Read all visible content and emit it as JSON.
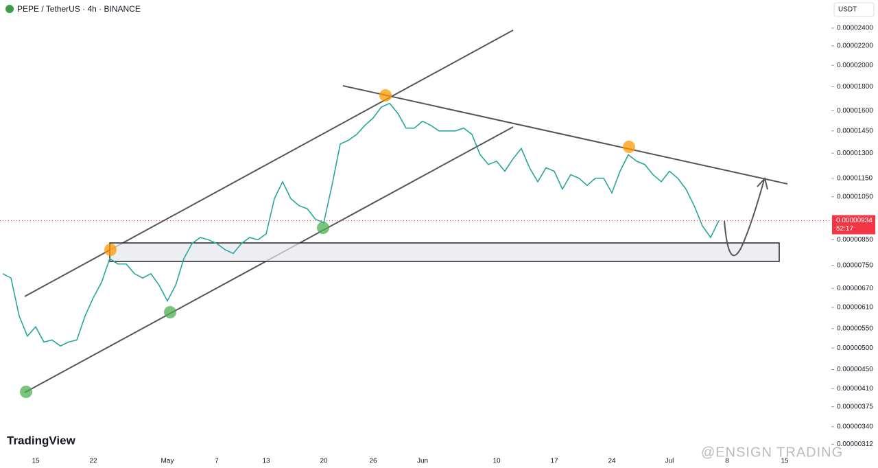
{
  "header": {
    "symbol": "PEPE / TetherUS · 4h · BINANCE",
    "currency": "USDT",
    "brand": "TradingView",
    "watermark": "@ENSIGN TRADING",
    "countdown": "52:17"
  },
  "chart_data": {
    "type": "line",
    "log_scale": true,
    "grid": false,
    "last_price": {
      "value": 9.34e-06,
      "label": "0.00000934"
    },
    "categories": [
      null,
      null,
      null,
      null,
      "15",
      null,
      null,
      null,
      null,
      null,
      null,
      "22",
      null,
      null,
      null,
      null,
      null,
      null,
      null,
      null,
      "May",
      null,
      null,
      null,
      null,
      null,
      "7",
      null,
      null,
      null,
      null,
      null,
      "13",
      null,
      null,
      null,
      null,
      null,
      null,
      "20",
      null,
      null,
      null,
      null,
      null,
      "26",
      null,
      null,
      null,
      null,
      null,
      "Jun",
      null,
      null,
      null,
      null,
      null,
      null,
      null,
      null,
      "10",
      null,
      null,
      null,
      null,
      null,
      null,
      "17",
      null,
      null,
      null,
      null,
      null,
      null,
      "24",
      null,
      null,
      null,
      null,
      null,
      null,
      "Jul",
      null,
      null,
      null,
      null,
      null,
      null,
      "8",
      null,
      null,
      null,
      null,
      null,
      null,
      "15"
    ],
    "series": [
      {
        "name": "PEPE",
        "color": "#26a69a",
        "values": [
          7.2e-06,
          7.05e-06,
          5.85e-06,
          5.3e-06,
          5.55e-06,
          5.15e-06,
          5.2e-06,
          5.05e-06,
          5.15e-06,
          5.2e-06,
          5.85e-06,
          6.4e-06,
          6.9e-06,
          7.75e-06,
          7.55e-06,
          7.55e-06,
          7.2e-06,
          7.05e-06,
          7.2e-06,
          6.8e-06,
          6.3e-06,
          6.8e-06,
          7.75e-06,
          8.35e-06,
          8.6e-06,
          8.5e-06,
          8.35e-06,
          8.1e-06,
          7.95e-06,
          8.35e-06,
          8.6e-06,
          8.5e-06,
          8.75e-06,
          1.04e-05,
          1.13e-05,
          1.04e-05,
          1.005e-05,
          9.9e-06,
          9.4e-06,
          9.25e-06,
          1.11e-05,
          1.36e-05,
          1.385e-05,
          1.425e-05,
          1.49e-05,
          1.545e-05,
          1.63e-05,
          1.66e-05,
          1.58e-05,
          1.47e-05,
          1.47e-05,
          1.52e-05,
          1.49e-05,
          1.45e-05,
          1.45e-05,
          1.45e-05,
          1.47e-05,
          1.425e-05,
          1.29e-05,
          1.23e-05,
          1.25e-05,
          1.19e-05,
          1.265e-05,
          1.33e-05,
          1.21e-05,
          1.13e-05,
          1.21e-05,
          1.19e-05,
          1.09e-05,
          1.17e-05,
          1.15e-05,
          1.11e-05,
          1.15e-05,
          1.15e-05,
          1.07e-05,
          1.19e-05,
          1.29e-05,
          1.25e-05,
          1.23e-05,
          1.17e-05,
          1.13e-05,
          1.19e-05,
          1.15e-05,
          1.09e-05,
          1.005e-05,
          9.1e-06,
          8.6e-06,
          9.34e-06,
          null,
          null,
          null,
          null,
          null,
          null,
          null,
          null
        ]
      }
    ],
    "ylim": [
      2.99e-06,
      2.755e-05
    ],
    "yticks": [
      {
        "value": 2.4e-05,
        "label": "0.00002400"
      },
      {
        "value": 2.2e-05,
        "label": "0.00002200"
      },
      {
        "value": 2e-05,
        "label": "0.00002000"
      },
      {
        "value": 1.8e-05,
        "label": "0.00001800"
      },
      {
        "value": 1.6e-05,
        "label": "0.00001600"
      },
      {
        "value": 1.45e-05,
        "label": "0.00001450"
      },
      {
        "value": 1.3e-05,
        "label": "0.00001300"
      },
      {
        "value": 1.15e-05,
        "label": "0.00001150"
      },
      {
        "value": 1.05e-05,
        "label": "0.00001050"
      },
      {
        "value": 8.5e-06,
        "label": "0.00000850"
      },
      {
        "value": 7.5e-06,
        "label": "0.00000750"
      },
      {
        "value": 6.7e-06,
        "label": "0.00000670"
      },
      {
        "value": 6.1e-06,
        "label": "0.00000610"
      },
      {
        "value": 5.5e-06,
        "label": "0.00000550"
      },
      {
        "value": 5e-06,
        "label": "0.00000500"
      },
      {
        "value": 4.5e-06,
        "label": "0.00000450"
      },
      {
        "value": 4.1e-06,
        "label": "0.00000410"
      },
      {
        "value": 3.75e-06,
        "label": "0.00000375"
      },
      {
        "value": 3.4e-06,
        "label": "0.00000340"
      },
      {
        "value": 3.12e-06,
        "label": "0.00000312"
      }
    ]
  }
}
